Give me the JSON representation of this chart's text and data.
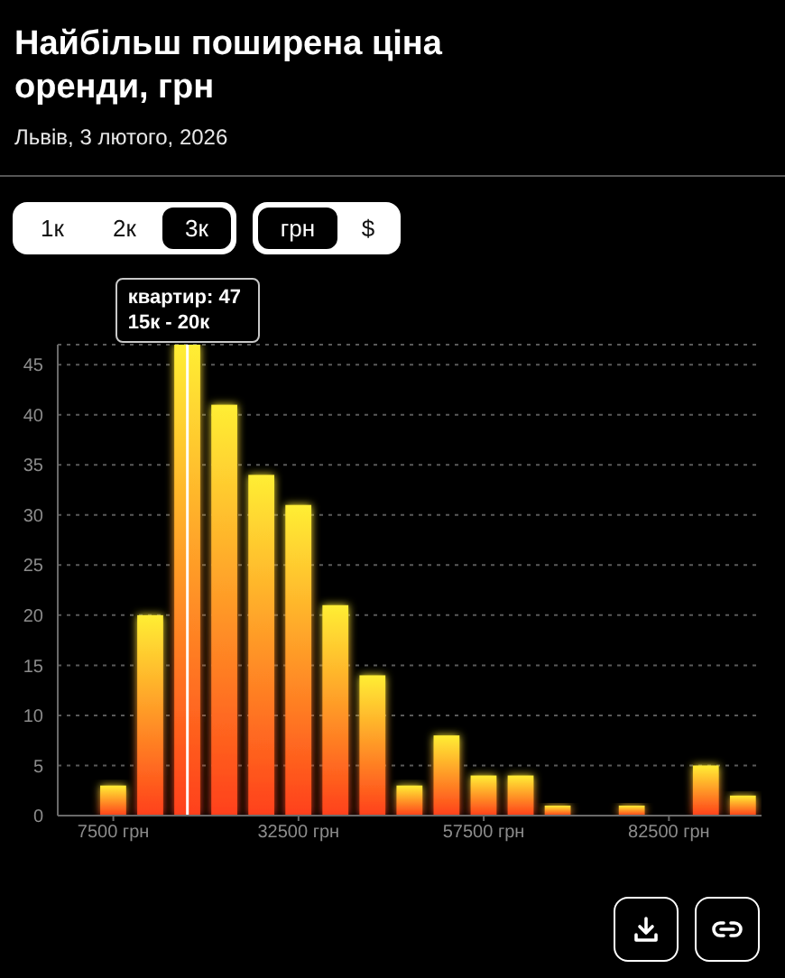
{
  "chart_data": {
    "type": "histogram",
    "title": "Найбільш поширена ціна оренди, грн",
    "subtitle": "Львів, 3 лютого, 2026",
    "bins": [
      5000,
      10000,
      15000,
      20000,
      25000,
      30000,
      35000,
      40000,
      45000,
      50000,
      55000,
      60000,
      65000,
      70000,
      75000,
      80000,
      85000,
      90000,
      95000
    ],
    "values": [
      3,
      20,
      47,
      41,
      34,
      31,
      21,
      14,
      3,
      8,
      4,
      4,
      1,
      0,
      1,
      0,
      5,
      2
    ],
    "color": "#ff8c1a",
    "xlim": [
      0,
      95000
    ],
    "xticks": [
      {
        "value": 7500,
        "label": "7500 грн"
      },
      {
        "value": 32500,
        "label": "32500 грн"
      },
      {
        "value": 57500,
        "label": "57500 грн"
      },
      {
        "value": 82500,
        "label": "82500 грн"
      }
    ],
    "ylim": [
      0,
      47
    ],
    "yticks": [
      0,
      5,
      10,
      15,
      20,
      25,
      30,
      35,
      40,
      45
    ],
    "grid": "y",
    "ref_lines": [
      {
        "axis": "x",
        "value": 17500,
        "color": "#ffffff"
      }
    ],
    "annotations": [
      "1к",
      "2к",
      "3к",
      "грн",
      "$",
      {
        "text": "квартир: 47\n15к - 20к",
        "x": 17500,
        "y": 47
      }
    ]
  }
}
